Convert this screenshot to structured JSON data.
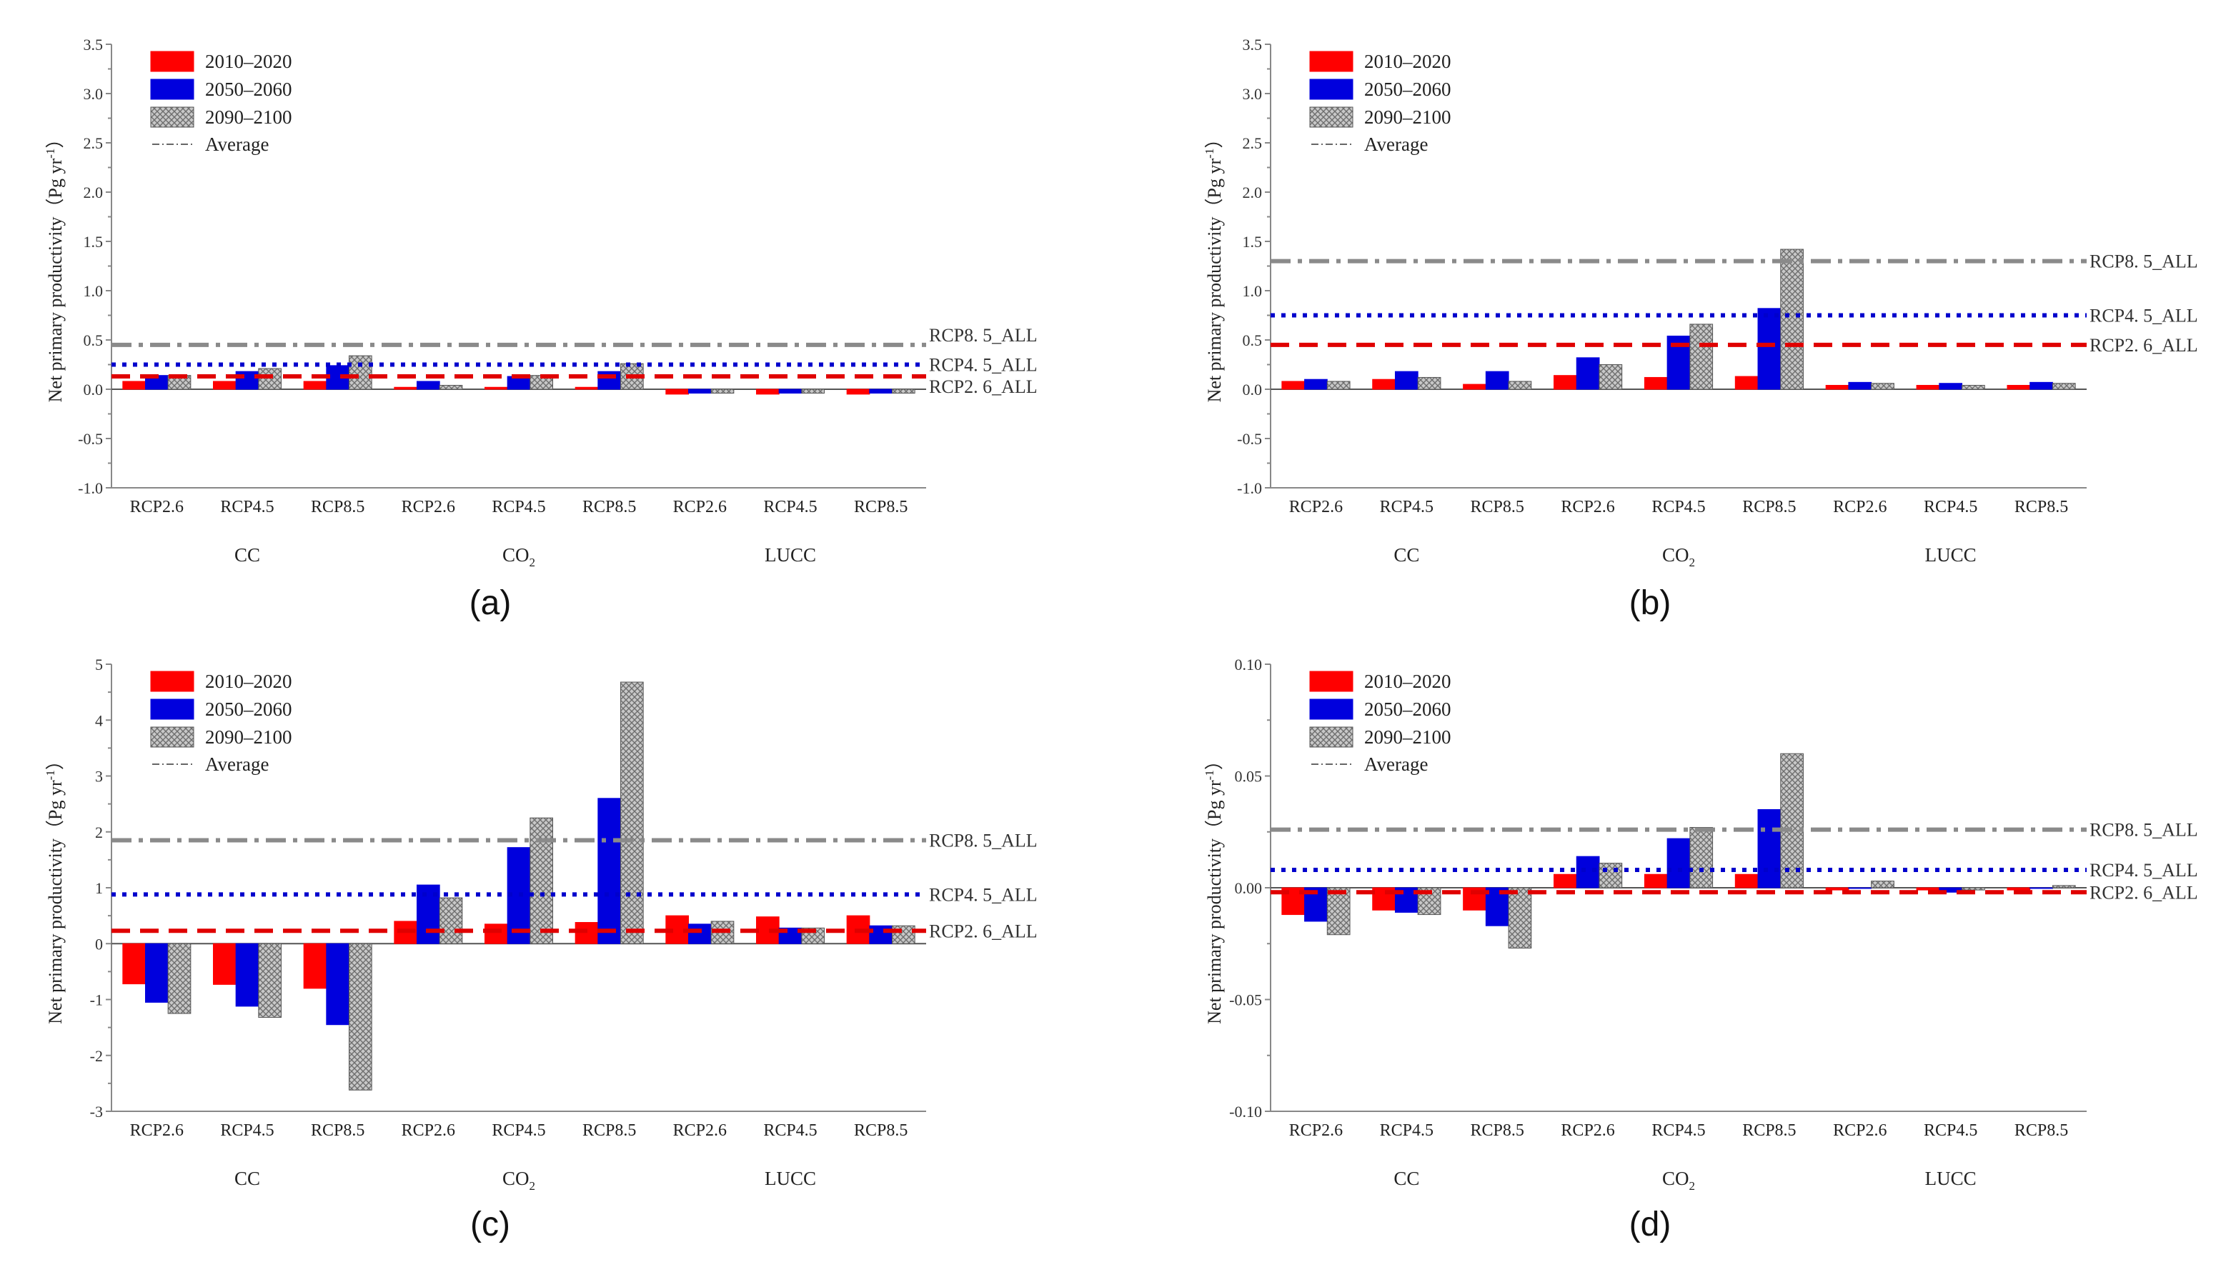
{
  "colors": {
    "s2010": "#ff0000",
    "s2050": "#0000dd",
    "s2090_fill": "#c4c4c4",
    "avg_rcp85": "#8a8a8a",
    "avg_rcp45": "#0000cc",
    "avg_rcp26": "#e00000",
    "axis": "#888888"
  },
  "legend": {
    "items": [
      "2010–2020",
      "2050–2060",
      "2090–2100"
    ],
    "average_label": "Average"
  },
  "ref_labels": [
    "RCP8. 5_ALL",
    "RCP4. 5_ALL",
    "RCP2. 6_ALL"
  ],
  "ylabel_text": "Net primary productivity（Pg yr",
  "ylabel_sup": "-1",
  "ylabel_close": "）",
  "categories": [
    "RCP2.6",
    "RCP4.5",
    "RCP8.5",
    "RCP2.6",
    "RCP4.5",
    "RCP8.5",
    "RCP2.6",
    "RCP4.5",
    "RCP8.5"
  ],
  "groups": [
    {
      "label": "CC",
      "sub": ""
    },
    {
      "label": "CO",
      "sub": "2"
    },
    {
      "label": "LUCC",
      "sub": ""
    }
  ],
  "chart_data": [
    {
      "panel": "(a)",
      "type": "bar",
      "ylim": [
        -1.0,
        3.5
      ],
      "yticks": [
        "3.5",
        "3.0",
        "2.5",
        "2.0",
        "1.5",
        "1.0",
        "0.5",
        "0.0",
        "-0.5",
        "-1.0"
      ],
      "series": [
        {
          "name": "2010–2020",
          "values": [
            0.08,
            0.08,
            0.08,
            0.02,
            0.02,
            0.02,
            -0.05,
            -0.05,
            -0.05
          ]
        },
        {
          "name": "2050–2060",
          "values": [
            0.14,
            0.18,
            0.24,
            0.08,
            0.13,
            0.18,
            -0.04,
            -0.04,
            -0.04
          ]
        },
        {
          "name": "2090–2100",
          "values": [
            0.14,
            0.21,
            0.34,
            0.04,
            0.14,
            0.26,
            -0.04,
            -0.04,
            -0.04
          ]
        }
      ],
      "averages": {
        "RCP8.5_ALL": 0.45,
        "RCP4.5_ALL": 0.25,
        "RCP2.6_ALL": 0.13
      }
    },
    {
      "panel": "(b)",
      "type": "bar",
      "ylim": [
        -1.0,
        3.5
      ],
      "yticks": [
        "3.5",
        "3.0",
        "2.5",
        "2.0",
        "1.5",
        "1.0",
        "0.5",
        "0.0",
        "-0.5",
        "-1.0"
      ],
      "series": [
        {
          "name": "2010–2020",
          "values": [
            0.08,
            0.1,
            0.05,
            0.14,
            0.12,
            0.13,
            0.04,
            0.04,
            0.04
          ]
        },
        {
          "name": "2050–2060",
          "values": [
            0.1,
            0.18,
            0.18,
            0.32,
            0.54,
            0.82,
            0.07,
            0.06,
            0.07
          ]
        },
        {
          "name": "2090–2100",
          "values": [
            0.08,
            0.12,
            0.08,
            0.25,
            0.66,
            1.42,
            0.06,
            0.04,
            0.06
          ]
        }
      ],
      "averages": {
        "RCP8.5_ALL": 1.3,
        "RCP4.5_ALL": 0.75,
        "RCP2.6_ALL": 0.45
      }
    },
    {
      "panel": "(c)",
      "type": "bar",
      "ylim": [
        -3,
        5
      ],
      "yticks": [
        "5",
        "4",
        "3",
        "2",
        "1",
        "0",
        "-1",
        "-2",
        "-3"
      ],
      "series": [
        {
          "name": "2010–2020",
          "values": [
            -0.72,
            -0.73,
            -0.8,
            0.4,
            0.35,
            0.38,
            0.5,
            0.48,
            0.5
          ]
        },
        {
          "name": "2050–2060",
          "values": [
            -1.05,
            -1.12,
            -1.45,
            1.05,
            1.72,
            2.6,
            0.35,
            0.28,
            0.32
          ]
        },
        {
          "name": "2090–2100",
          "values": [
            -1.25,
            -1.32,
            -2.62,
            0.82,
            2.25,
            4.68,
            0.4,
            0.28,
            0.32
          ]
        }
      ],
      "averages": {
        "RCP8.5_ALL": 1.85,
        "RCP4.5_ALL": 0.88,
        "RCP2.6_ALL": 0.23
      }
    },
    {
      "panel": "(d)",
      "type": "bar",
      "ylim": [
        -0.1,
        0.1
      ],
      "yticks": [
        "0.10",
        "0.05",
        "0.00",
        "-0.05",
        "-0.10"
      ],
      "series": [
        {
          "name": "2010–2020",
          "values": [
            -0.012,
            -0.01,
            -0.01,
            0.006,
            0.006,
            0.006,
            -0.001,
            -0.001,
            -0.001
          ]
        },
        {
          "name": "2050–2060",
          "values": [
            -0.015,
            -0.011,
            -0.017,
            0.014,
            0.022,
            0.035,
            0.0,
            -0.002,
            0.0
          ]
        },
        {
          "name": "2090–2100",
          "values": [
            -0.021,
            -0.012,
            -0.027,
            0.011,
            0.027,
            0.06,
            0.003,
            -0.001,
            0.001
          ]
        }
      ],
      "averages": {
        "RCP8.5_ALL": 0.026,
        "RCP4.5_ALL": 0.008,
        "RCP2.6_ALL": -0.002
      }
    }
  ]
}
